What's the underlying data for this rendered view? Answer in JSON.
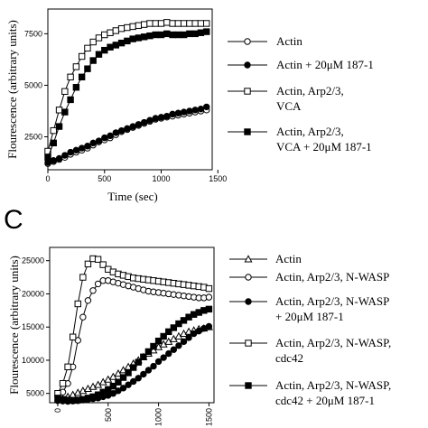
{
  "chart_data": [
    {
      "type": "line",
      "panel_letter": "",
      "xlabel": "Time (sec)",
      "ylabel": "Flourescence (arbitrary units)",
      "xlim": [
        0,
        1450
      ],
      "ylim": [
        900,
        8700
      ],
      "x_ticks": [
        "0",
        "500",
        "1000",
        "1500"
      ],
      "x_tick_values": [
        0,
        500,
        1000,
        1500
      ],
      "y_ticks": [
        "2500",
        "5000",
        "7500"
      ],
      "y_tick_values": [
        2500,
        5000,
        7500
      ],
      "legend_placement": "right",
      "series": [
        {
          "name": "Actin",
          "marker": "open-circle",
          "x": [
            0,
            50,
            100,
            150,
            200,
            250,
            300,
            350,
            400,
            450,
            500,
            550,
            600,
            650,
            700,
            750,
            800,
            850,
            900,
            950,
            1000,
            1050,
            1100,
            1150,
            1200,
            1250,
            1300,
            1350,
            1400
          ],
          "y": [
            1200,
            1300,
            1400,
            1500,
            1650,
            1750,
            1850,
            1950,
            2100,
            2250,
            2350,
            2450,
            2600,
            2750,
            2850,
            2950,
            3050,
            3150,
            3250,
            3350,
            3400,
            3450,
            3500,
            3550,
            3600,
            3650,
            3700,
            3750,
            3800
          ]
        },
        {
          "name": "Actin + 20μM 187-1",
          "marker": "filled-circle",
          "x": [
            0,
            50,
            100,
            150,
            200,
            250,
            300,
            350,
            400,
            450,
            500,
            550,
            600,
            650,
            700,
            750,
            800,
            850,
            900,
            950,
            1000,
            1050,
            1100,
            1150,
            1200,
            1250,
            1300,
            1350,
            1400
          ],
          "y": [
            1250,
            1350,
            1450,
            1600,
            1750,
            1850,
            1950,
            2050,
            2200,
            2300,
            2450,
            2550,
            2700,
            2800,
            2900,
            3000,
            3100,
            3200,
            3300,
            3400,
            3450,
            3500,
            3600,
            3650,
            3700,
            3750,
            3800,
            3850,
            3950
          ]
        },
        {
          "name": "Actin, Arp2/3, VCA",
          "marker": "open-square",
          "x": [
            0,
            50,
            100,
            150,
            200,
            250,
            300,
            350,
            400,
            450,
            500,
            550,
            600,
            650,
            700,
            750,
            800,
            850,
            900,
            950,
            1000,
            1050,
            1100,
            1150,
            1200,
            1250,
            1300,
            1350,
            1400
          ],
          "y": [
            1800,
            2800,
            3800,
            4700,
            5400,
            5900,
            6400,
            6800,
            7100,
            7300,
            7450,
            7550,
            7650,
            7750,
            7800,
            7850,
            7900,
            7950,
            8000,
            8000,
            8000,
            8050,
            8000,
            8000,
            8000,
            8000,
            8000,
            8000,
            8000
          ]
        },
        {
          "name": "Actin, Arp2/3, VCA + 20μM 187-1",
          "marker": "filled-square",
          "x": [
            0,
            50,
            100,
            150,
            200,
            250,
            300,
            350,
            400,
            450,
            500,
            550,
            600,
            650,
            700,
            750,
            800,
            850,
            900,
            950,
            1000,
            1050,
            1100,
            1150,
            1200,
            1250,
            1300,
            1350,
            1400
          ],
          "y": [
            1500,
            2200,
            3000,
            3700,
            4300,
            4900,
            5400,
            5800,
            6200,
            6500,
            6700,
            6850,
            6950,
            7050,
            7150,
            7250,
            7300,
            7350,
            7400,
            7450,
            7450,
            7500,
            7450,
            7450,
            7450,
            7500,
            7500,
            7550,
            7600
          ]
        }
      ]
    },
    {
      "type": "line",
      "panel_letter": "C",
      "xlabel": "",
      "ylabel": "Flourescence (arbitrary units)",
      "xlim": [
        -80,
        1550
      ],
      "ylim": [
        3600,
        27000
      ],
      "x_ticks": [
        "0",
        "500",
        "1000",
        "1500"
      ],
      "x_tick_values": [
        0,
        500,
        1000,
        1500
      ],
      "y_ticks": [
        "5000",
        "10000",
        "15000",
        "20000",
        "25000"
      ],
      "y_tick_values": [
        5000,
        10000,
        15000,
        20000,
        25000
      ],
      "legend_placement": "right",
      "series": [
        {
          "name": "Actin",
          "marker": "open-triangle",
          "x": [
            0,
            50,
            100,
            150,
            200,
            250,
            300,
            350,
            400,
            450,
            500,
            550,
            600,
            650,
            700,
            750,
            800,
            850,
            900,
            950,
            1000,
            1050,
            1100,
            1150,
            1200,
            1250,
            1300,
            1350,
            1400,
            1450,
            1500
          ],
          "y": [
            4000,
            4200,
            4500,
            4800,
            5100,
            5400,
            5700,
            6000,
            6300,
            6700,
            7100,
            7500,
            8000,
            8500,
            9000,
            9500,
            10000,
            10500,
            11000,
            11500,
            12000,
            12400,
            12800,
            13200,
            13600,
            14000,
            14300,
            14500,
            14700,
            14800,
            15000
          ]
        },
        {
          "name": "Actin, Arp2/3, N-WASP",
          "marker": "open-circle",
          "x": [
            0,
            50,
            100,
            150,
            200,
            250,
            300,
            350,
            400,
            450,
            500,
            550,
            600,
            650,
            700,
            750,
            800,
            850,
            900,
            950,
            1000,
            1050,
            1100,
            1150,
            1200,
            1250,
            1300,
            1350,
            1400,
            1450,
            1500
          ],
          "y": [
            4500,
            5200,
            6500,
            9000,
            13000,
            16500,
            19000,
            20500,
            21500,
            22000,
            22000,
            21800,
            21600,
            21400,
            21200,
            21000,
            20800,
            20600,
            20400,
            20300,
            20200,
            20100,
            20000,
            19900,
            19800,
            19700,
            19600,
            19500,
            19400,
            19400,
            19500
          ]
        },
        {
          "name": "Actin, Arp2/3, N-WASP + 20μM 187-1",
          "marker": "filled-circle",
          "x": [
            0,
            50,
            100,
            150,
            200,
            250,
            300,
            350,
            400,
            450,
            500,
            550,
            600,
            650,
            700,
            750,
            800,
            850,
            900,
            950,
            1000,
            1050,
            1100,
            1150,
            1200,
            1250,
            1300,
            1350,
            1400,
            1450,
            1500
          ],
          "y": [
            3900,
            3850,
            3800,
            3850,
            3900,
            4000,
            4100,
            4200,
            4300,
            4500,
            4700,
            5000,
            5400,
            5800,
            6300,
            6800,
            7300,
            7900,
            8500,
            9100,
            9800,
            10400,
            11000,
            11600,
            12200,
            12800,
            13400,
            14000,
            14400,
            14800,
            15100
          ]
        },
        {
          "name": "Actin, Arp2/3, N-WASP, cdc42",
          "marker": "open-square",
          "x": [
            0,
            50,
            100,
            150,
            200,
            250,
            300,
            350,
            400,
            450,
            500,
            550,
            600,
            650,
            700,
            750,
            800,
            850,
            900,
            950,
            1000,
            1050,
            1100,
            1150,
            1200,
            1250,
            1300,
            1350,
            1400,
            1450,
            1500
          ],
          "y": [
            5000,
            6500,
            9000,
            13500,
            18500,
            22500,
            24500,
            25300,
            25200,
            24400,
            23700,
            23300,
            23000,
            22800,
            22600,
            22400,
            22300,
            22200,
            22100,
            22000,
            21900,
            21800,
            21700,
            21600,
            21500,
            21400,
            21300,
            21200,
            21100,
            21000,
            20800
          ]
        },
        {
          "name": "Actin, Arp2/3, N-WASP, cdc42 + 20μM 187-1",
          "marker": "filled-square",
          "x": [
            0,
            50,
            100,
            150,
            200,
            250,
            300,
            350,
            400,
            450,
            500,
            550,
            600,
            650,
            700,
            750,
            800,
            850,
            900,
            950,
            1000,
            1050,
            1100,
            1150,
            1200,
            1250,
            1300,
            1350,
            1400,
            1450,
            1500
          ],
          "y": [
            4300,
            4100,
            4000,
            3950,
            4000,
            4100,
            4300,
            4500,
            4800,
            5200,
            5600,
            6100,
            6700,
            7400,
            8100,
            8900,
            9700,
            10500,
            11300,
            12100,
            12900,
            13600,
            14300,
            14900,
            15500,
            16000,
            16500,
            16900,
            17200,
            17500,
            17700
          ]
        }
      ]
    }
  ]
}
